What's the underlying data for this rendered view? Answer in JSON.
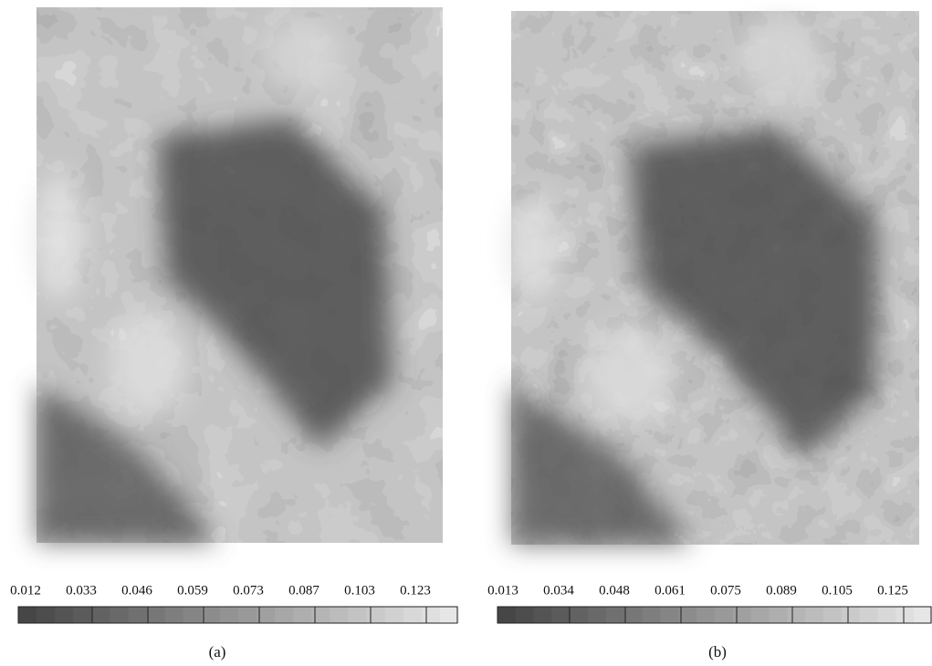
{
  "panels": [
    {
      "label": "(a)",
      "colorbar_ticks": [
        "0.012",
        "0.033",
        "0.046",
        "0.059",
        "0.073",
        "0.087",
        "0.103",
        "0.123"
      ]
    },
    {
      "label": "(b)",
      "colorbar_ticks": [
        "0.013",
        "0.034",
        "0.048",
        "0.061",
        "0.075",
        "0.089",
        "0.105",
        "0.125"
      ]
    }
  ]
}
